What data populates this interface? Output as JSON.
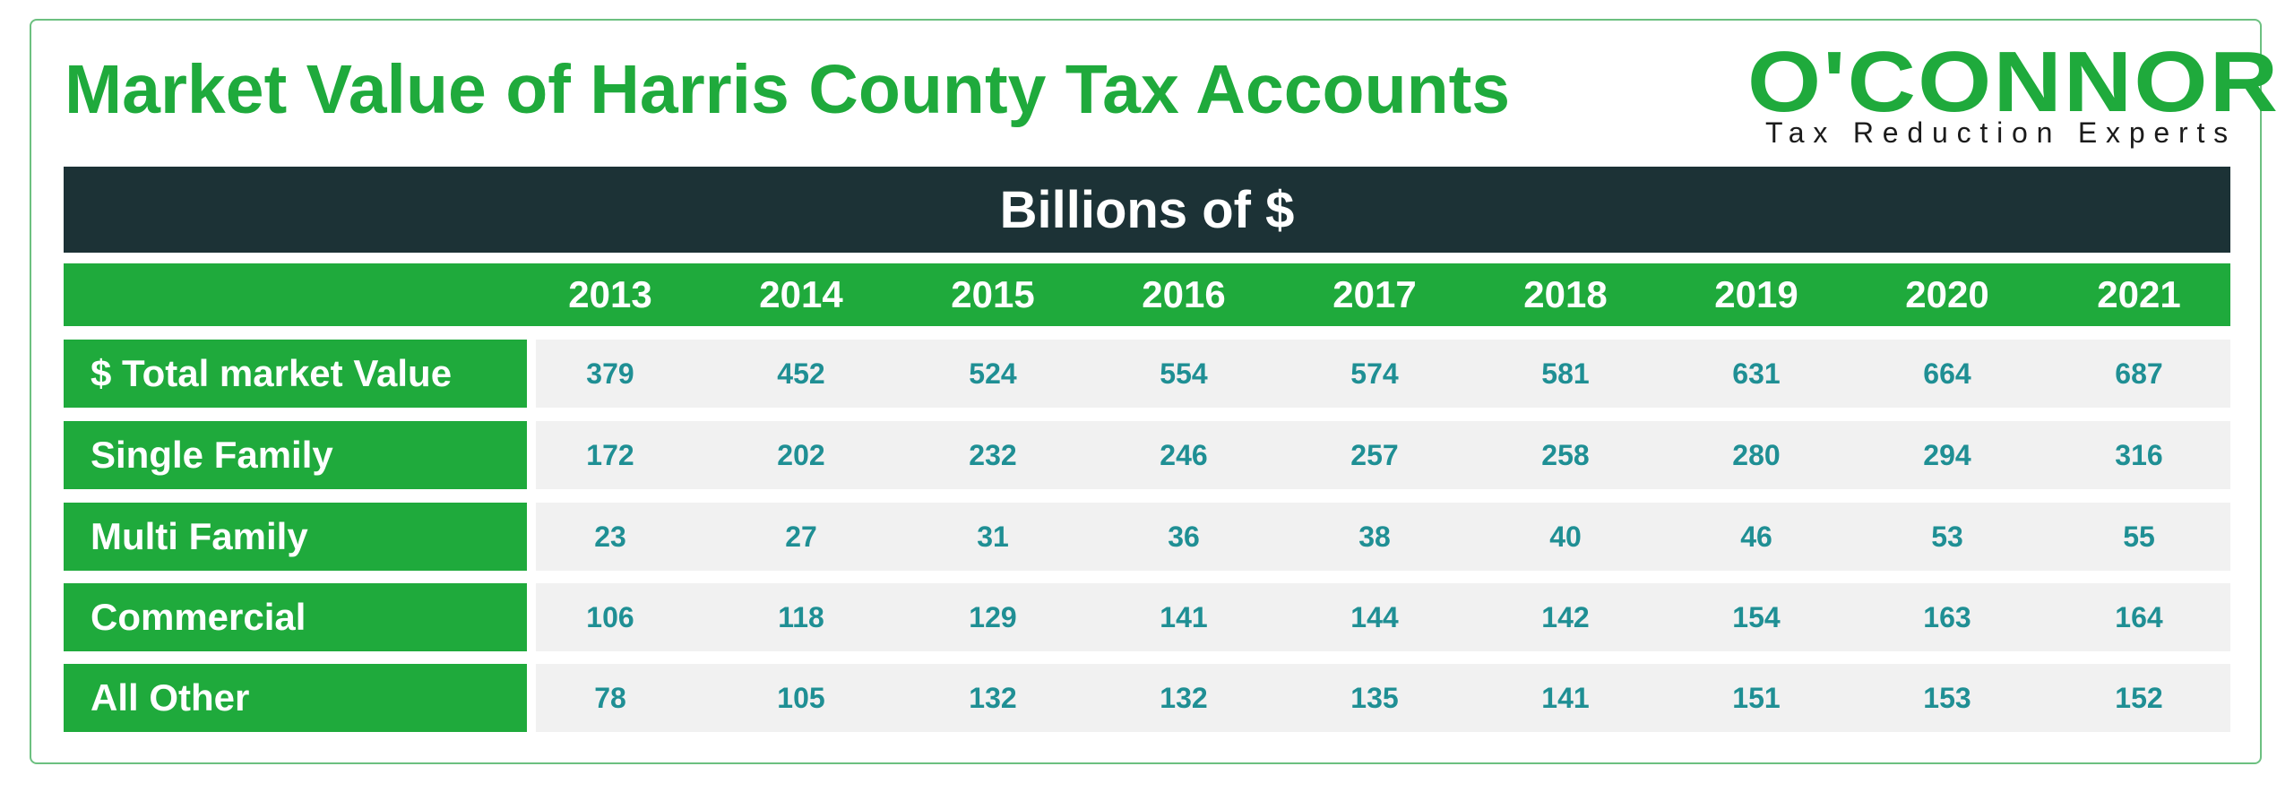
{
  "title": "Market Value of Harris County Tax Accounts",
  "logo": {
    "brand": "O'CONNOR",
    "tagline": "Tax Reduction Experts"
  },
  "unit_banner": "Billions of $",
  "colors": {
    "brand_green": "#1faa3c",
    "banner_dark": "#1c3236",
    "value_teal": "#1f8f94",
    "cell_bg": "#f1f1f1"
  },
  "chart_data": {
    "type": "table",
    "title": "Market Value of Harris County Tax Accounts",
    "unit": "Billions of $",
    "columns": [
      "2013",
      "2014",
      "2015",
      "2016",
      "2017",
      "2018",
      "2019",
      "2020",
      "2021"
    ],
    "rows": [
      {
        "label": "$ Total market Value",
        "values": [
          379,
          452,
          524,
          554,
          574,
          581,
          631,
          664,
          687
        ]
      },
      {
        "label": "Single Family",
        "values": [
          172,
          202,
          232,
          246,
          257,
          258,
          280,
          294,
          316
        ]
      },
      {
        "label": "Multi Family",
        "values": [
          23,
          27,
          31,
          36,
          38,
          40,
          46,
          53,
          55
        ]
      },
      {
        "label": "Commercial",
        "values": [
          106,
          118,
          129,
          141,
          144,
          142,
          154,
          163,
          164
        ]
      },
      {
        "label": "All Other",
        "values": [
          78,
          105,
          132,
          132,
          135,
          141,
          151,
          153,
          152
        ]
      }
    ]
  }
}
